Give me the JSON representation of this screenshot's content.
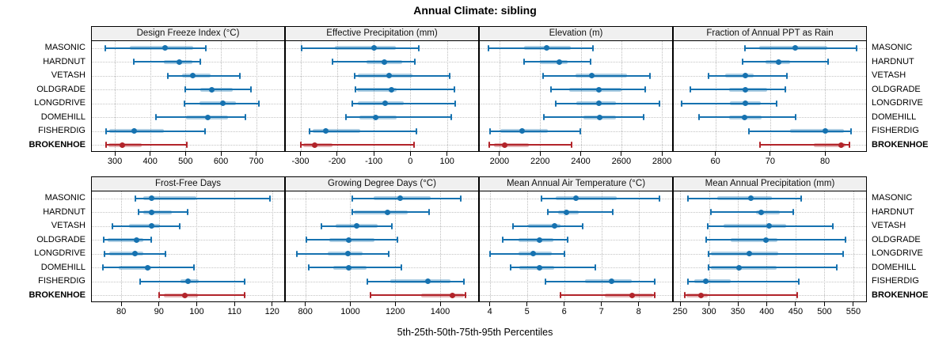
{
  "title": "Annual Climate: sibling",
  "footer": "5th-25th-50th-75th-95th Percentiles",
  "stations": [
    "MASONIC",
    "HARDNUT",
    "VETASH",
    "OLDGRADE",
    "LONGDRIVE",
    "DOMEHILL",
    "FISHERDIG",
    "BROKENHOE"
  ],
  "highlight_station": "BROKENHOE",
  "colors": {
    "series": "#1672B0",
    "series_band": "rgba(22,114,176,0.35)",
    "highlight": "#B2242A",
    "highlight_band": "rgba(178,36,42,0.35)",
    "grid": "#c4c4c4",
    "strip_bg": "#F0F0F0",
    "border": "#000000"
  },
  "chart_data": {
    "type": "scatter",
    "variant": "percentile-interval-dotplot (trellis, 2x4 panels, free x scales)",
    "percentiles": [
      5,
      25,
      50,
      75,
      95
    ],
    "legend_note": "5th-25th-50th-75th-95th Percentiles",
    "panels": [
      {
        "title": "Design Freeze Index (°C)",
        "xlim": [
          235,
          779
        ],
        "tick_values": [
          300,
          400,
          500,
          600,
          700
        ],
        "tick_labels": [
          "300",
          "400",
          "500",
          "600",
          "700"
        ],
        "values": {
          "MASONIC": [
            272,
            343,
            443,
            522,
            558
          ],
          "HARDNUT": [
            354,
            439,
            483,
            519,
            541
          ],
          "VETASH": [
            451,
            490,
            520,
            571,
            653
          ],
          "OLDGRADE": [
            499,
            541,
            575,
            634,
            685
          ],
          "LONGDRIVE": [
            497,
            539,
            606,
            642,
            707
          ],
          "DOMEHILL": [
            416,
            501,
            563,
            621,
            670
          ],
          "FISHERDIG": [
            275,
            285,
            354,
            438,
            556
          ],
          "BROKENHOE": [
            275,
            282,
            322,
            377,
            504
          ]
        }
      },
      {
        "title": "Effective Precipitation (mm)",
        "xlim": [
          -340,
          185
        ],
        "tick_values": [
          -300,
          -200,
          -100,
          0,
          100
        ],
        "tick_labels": [
          "-300",
          "-200",
          "-100",
          "0",
          "100"
        ],
        "values": {
          "MASONIC": [
            -297,
            -205,
            -99,
            -40,
            23
          ],
          "HARDNUT": [
            -213,
            -120,
            -72,
            -23,
            13
          ],
          "VETASH": [
            -153,
            -144,
            -57,
            5,
            107
          ],
          "OLDGRADE": [
            -150,
            -146,
            -51,
            -37,
            120
          ],
          "LONGDRIVE": [
            -158,
            -144,
            -69,
            -18,
            122
          ],
          "DOMEHILL": [
            -175,
            -139,
            -95,
            -38,
            111
          ],
          "FISHERDIG": [
            -276,
            -267,
            -231,
            -136,
            17
          ],
          "BROKENHOE": [
            -300,
            -292,
            -261,
            -213,
            10
          ]
        }
      },
      {
        "title": "Elevation (m)",
        "xlim": [
          1903,
          2850
        ],
        "tick_values": [
          2000,
          2200,
          2400,
          2600,
          2800
        ],
        "tick_labels": [
          "2000",
          "2200",
          "2400",
          "2600",
          "2800"
        ],
        "values": {
          "MASONIC": [
            1947,
            2120,
            2234,
            2351,
            2460
          ],
          "HARDNUT": [
            2120,
            2200,
            2293,
            2334,
            2449
          ],
          "VETASH": [
            2213,
            2376,
            2455,
            2627,
            2741
          ],
          "OLDGRADE": [
            2252,
            2343,
            2490,
            2601,
            2718
          ],
          "LONGDRIVE": [
            2278,
            2380,
            2490,
            2575,
            2787
          ],
          "DOMEHILL": [
            2220,
            2412,
            2494,
            2572,
            2709
          ],
          "FISHERDIG": [
            1954,
            2003,
            2113,
            2237,
            2397
          ],
          "BROKENHOE": [
            1951,
            1973,
            2026,
            2146,
            2354
          ]
        }
      },
      {
        "title": "Fraction of Annual PPT as Rain",
        "xlim": [
          52.4,
          87.5
        ],
        "tick_values": [
          60,
          70,
          80
        ],
        "tick_labels": [
          "60",
          "70",
          "80"
        ],
        "values": {
          "MASONIC": [
            65.4,
            68.0,
            74.5,
            80.4,
            85.8
          ],
          "HARDNUT": [
            65.0,
            69.1,
            71.5,
            73.6,
            80.5
          ],
          "VETASH": [
            58.8,
            61.8,
            65.4,
            67.0,
            73.1
          ],
          "OLDGRADE": [
            55.4,
            62.5,
            65.4,
            69.5,
            72.7
          ],
          "LONGDRIVE": [
            53.9,
            62.7,
            65.5,
            68.3,
            71.2
          ],
          "DOMEHILL": [
            57.0,
            62.5,
            65.3,
            68.4,
            74.7
          ],
          "FISHERDIG": [
            66.1,
            73.7,
            80.0,
            83.4,
            84.8
          ],
          "BROKENHOE": [
            68.2,
            78.0,
            83.0,
            83.8,
            84.5
          ]
        }
      },
      {
        "title": "Frost-Free Days",
        "xlim": [
          72.2,
          123.2
        ],
        "tick_values": [
          80,
          90,
          100,
          110,
          120
        ],
        "tick_labels": [
          "80",
          "90",
          "100",
          "110",
          "120"
        ],
        "values": {
          "MASONIC": [
            83.7,
            85.9,
            88,
            100,
            119.5
          ],
          "HARDNUT": [
            84.6,
            85.8,
            88,
            93.5,
            97.6
          ],
          "VETASH": [
            77.7,
            82.1,
            88,
            90.2,
            95.5
          ],
          "OLDGRADE": [
            75.4,
            76.3,
            84,
            85.9,
            88
          ],
          "LONGDRIVE": [
            75.6,
            76.8,
            83.7,
            85.8,
            91.7
          ],
          "DOMEHILL": [
            75.2,
            79.3,
            87,
            87.9,
            99.2
          ],
          "FISHERDIG": [
            85.1,
            95.7,
            97.8,
            100.6,
            112.8
          ],
          "BROKENHOE": [
            90,
            91.4,
            96.9,
            100.4,
            112.7
          ]
        }
      },
      {
        "title": "Growing Degree Days (°C)",
        "xlim": [
          713,
          1569
        ],
        "tick_values": [
          800,
          1000,
          1200,
          1400
        ],
        "tick_labels": [
          "800",
          "1000",
          "1200",
          "1400"
        ],
        "values": {
          "MASONIC": [
            1010,
            1105,
            1222,
            1359,
            1490
          ],
          "HARDNUT": [
            1010,
            1016,
            1164,
            1254,
            1349
          ],
          "VETASH": [
            870,
            935,
            1027,
            1120,
            1184
          ],
          "OLDGRADE": [
            806,
            905,
            994,
            1108,
            1211
          ],
          "LONGDRIVE": [
            762,
            899,
            990,
            1056,
            1172
          ],
          "DOMEHILL": [
            815,
            926,
            992,
            1074,
            1227
          ],
          "FISHERDIG": [
            1076,
            1178,
            1347,
            1446,
            1504
          ],
          "BROKENHOE": [
            1091,
            1316,
            1455,
            1504,
            1512
          ]
        }
      },
      {
        "title": "Mean Annual Air Temperature (°C)",
        "xlim": [
          3.73,
          8.9
        ],
        "tick_values": [
          4,
          5,
          6,
          7,
          8
        ],
        "tick_labels": [
          "4",
          "5",
          "6",
          "7",
          "8"
        ],
        "values": {
          "MASONIC": [
            5.4,
            5.77,
            6.31,
            7.42,
            8.55
          ],
          "HARDNUT": [
            5.57,
            5.84,
            6.05,
            6.4,
            7.3
          ],
          "VETASH": [
            4.63,
            5.03,
            5.75,
            5.91,
            6.49
          ],
          "OLDGRADE": [
            4.35,
            4.77,
            5.33,
            5.7,
            6.09
          ],
          "LONGDRIVE": [
            4.01,
            4.77,
            5.17,
            5.67,
            6.0
          ],
          "DOMEHILL": [
            4.55,
            4.8,
            5.33,
            5.74,
            6.84
          ],
          "FISHERDIG": [
            5.5,
            6.56,
            7.28,
            7.82,
            8.43
          ],
          "BROKENHOE": [
            5.89,
            7.09,
            7.82,
            8.4,
            8.44
          ]
        }
      },
      {
        "title": "Mean Annual Precipitation (mm)",
        "xlim": [
          239,
          572
        ],
        "tick_values": [
          250,
          300,
          350,
          400,
          450,
          500,
          550
        ],
        "tick_labels": [
          "250",
          "300",
          "350",
          "400",
          "450",
          "500",
          "550"
        ],
        "values": {
          "MASONIC": [
            264,
            314,
            373,
            409,
            459
          ],
          "HARDNUT": [
            303,
            381,
            391,
            422,
            446
          ],
          "VETASH": [
            298,
            326,
            404,
            434,
            514
          ],
          "OLDGRADE": [
            295,
            337,
            398,
            419,
            537
          ],
          "LONGDRIVE": [
            299,
            303,
            370,
            420,
            532
          ],
          "DOMEHILL": [
            299,
            303,
            352,
            417,
            521
          ],
          "FISHERDIG": [
            263,
            275,
            294,
            337,
            456
          ],
          "BROKENHOE": [
            258,
            261,
            286,
            298,
            453
          ]
        }
      }
    ]
  }
}
